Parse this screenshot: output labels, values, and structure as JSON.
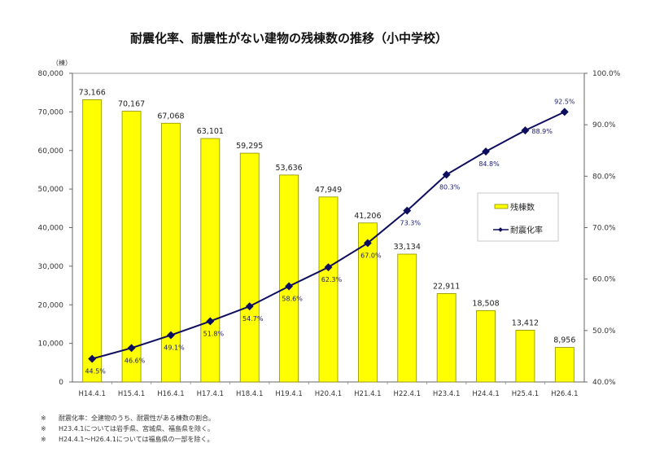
{
  "chart_data": {
    "type": "bar",
    "title": "耐震化率、耐震性がない建物の残棟数の推移（小中学校）",
    "xlabel": "",
    "ylabel": "（棟）",
    "y2label": "",
    "categories": [
      "H14.4.1",
      "H15.4.1",
      "H16.4.1",
      "H17.4.1",
      "H18.4.1",
      "H19.4.1",
      "H20.4.1",
      "H21.4.1",
      "H22.4.1",
      "H23.4.1",
      "H24.4.1",
      "H25.4.1",
      "H26.4.1"
    ],
    "series": [
      {
        "name": "残棟数",
        "type": "bar",
        "axis": "left",
        "color": "#ffff00",
        "values": [
          73166,
          70167,
          67068,
          63101,
          59295,
          53636,
          47949,
          41206,
          33134,
          22911,
          18508,
          13412,
          8956
        ],
        "labels": [
          "73,166",
          "70,167",
          "67,068",
          "63,101",
          "59,295",
          "53,636",
          "47,949",
          "41,206",
          "33,134",
          "22,911",
          "18,508",
          "13,412",
          "8,956"
        ]
      },
      {
        "name": "耐震化率",
        "type": "line",
        "axis": "right",
        "color": "#0d0d5e",
        "marker": "diamond",
        "values": [
          44.5,
          46.6,
          49.1,
          51.8,
          54.7,
          58.6,
          62.3,
          67.0,
          73.3,
          80.3,
          84.8,
          88.9,
          92.5
        ],
        "labels": [
          "44.5%",
          "46.6%",
          "49.1%",
          "51.8%",
          "54.7%",
          "58.6%",
          "62.3%",
          "67.0%",
          "73.3%",
          "80.3%",
          "84.8%",
          "88.9%",
          "92.5%"
        ]
      }
    ],
    "ylim": [
      0,
      80000
    ],
    "yticks": [
      "0",
      "10,000",
      "20,000",
      "30,000",
      "40,000",
      "50,000",
      "60,000",
      "70,000",
      "80,000"
    ],
    "y2lim": [
      40,
      100
    ],
    "y2ticks": [
      "40.0%",
      "50.0%",
      "60.0%",
      "70.0%",
      "80.0%",
      "90.0%",
      "100.0%"
    ],
    "grid": false,
    "legend": {
      "placement": "right",
      "entries": [
        "残棟数",
        "耐震化率"
      ]
    }
  },
  "notes": [
    {
      "mark": "※",
      "text": "耐震化率：全建物のうち、耐震性がある棟数の割合。"
    },
    {
      "mark": "※",
      "text": "H23.4.1については岩手県、宮城県、福島県を除く。"
    },
    {
      "mark": "※",
      "text": "H24.4.1～H26.4.1については福島県の一部を除く。"
    }
  ]
}
